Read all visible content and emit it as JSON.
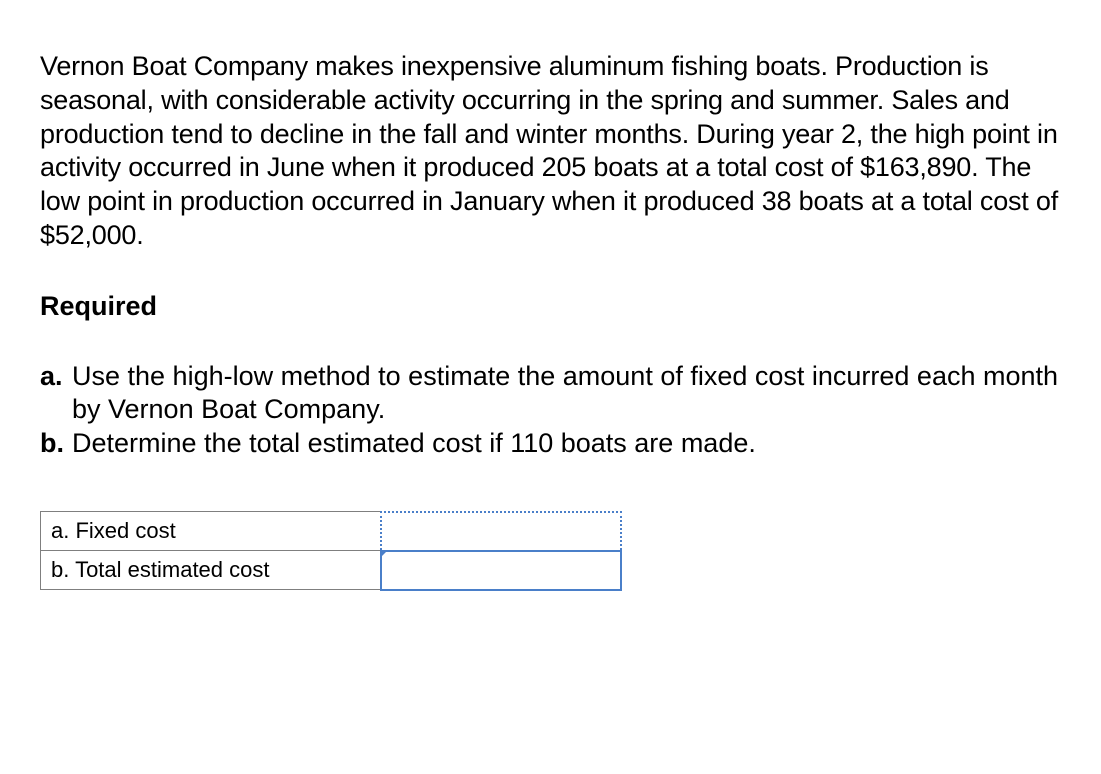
{
  "problem": {
    "text": "Vernon Boat Company makes inexpensive aluminum fishing boats. Production is seasonal, with considerable activity occurring in the spring and summer. Sales and production tend to decline in the fall and winter months. During year 2, the high point in activity occurred in June when it produced 205 boats at a total cost of $163,890. The low point in production occurred in January when it produced 38 boats at a total cost of $52,000."
  },
  "required_heading": "Required",
  "requirements": {
    "a": {
      "label": "a.",
      "text": "Use the high-low method to estimate the amount of fixed cost incurred each month by Vernon Boat Company."
    },
    "b": {
      "label": "b.",
      "text": "Determine the total estimated cost if 110 boats are made."
    }
  },
  "answer_table": {
    "rows": [
      {
        "label": "a. Fixed cost",
        "value": ""
      },
      {
        "label": "b. Total estimated cost",
        "value": ""
      }
    ]
  },
  "styling": {
    "font_size_body": 27,
    "font_size_table": 22,
    "text_color": "#000000",
    "background_color": "#ffffff",
    "table_border_color": "#7f7f7f",
    "selected_border_color": "#4a7fc9",
    "label_cell_width": 340,
    "input_cell_width": 240
  }
}
